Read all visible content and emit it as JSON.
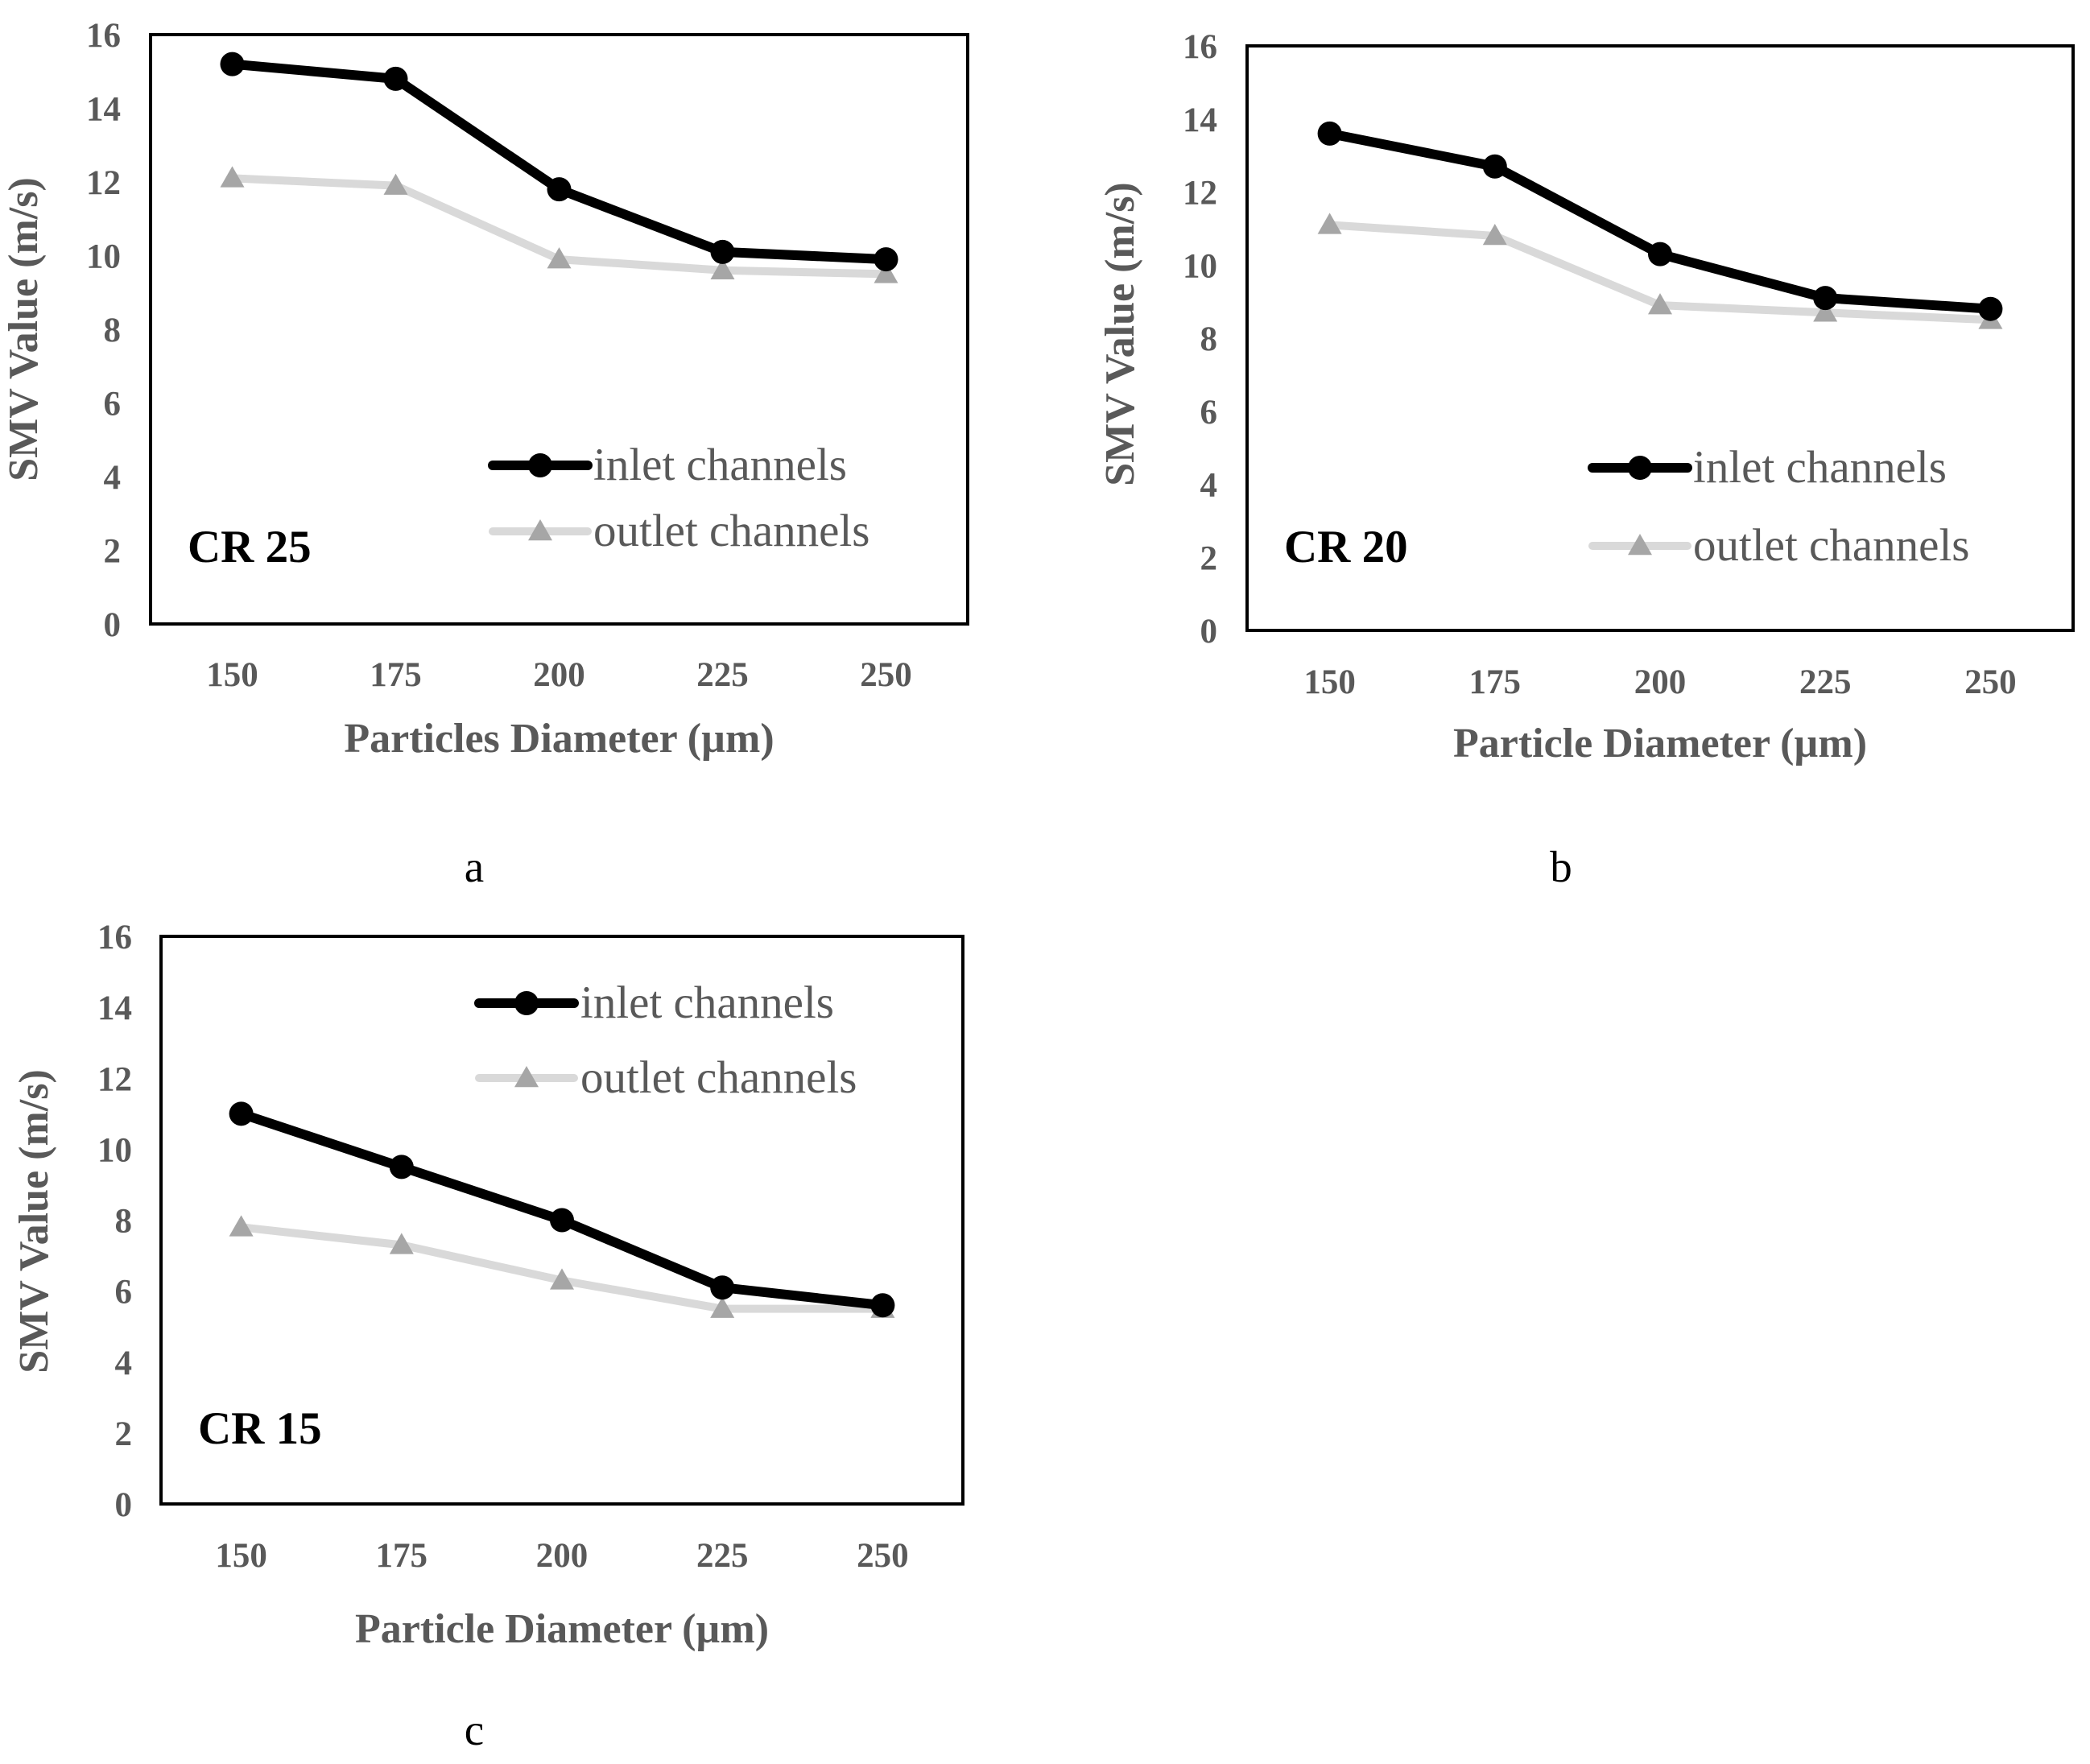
{
  "figure": {
    "captions": [
      "a",
      "b",
      "c"
    ]
  },
  "chart_data": [
    {
      "type": "line",
      "panel": "a",
      "annotation": "CR 25",
      "categories": [
        "150",
        "175",
        "200",
        "225",
        "250"
      ],
      "series": [
        {
          "name": "inlet channels",
          "color": "#000000",
          "marker": "circle",
          "values": [
            15.2,
            14.8,
            11.8,
            10.1,
            9.9
          ]
        },
        {
          "name": "outlet channels",
          "color": "#d9d9d9",
          "markerColor": "#a6a6a6",
          "marker": "triangle",
          "values": [
            12.1,
            11.9,
            9.9,
            9.6,
            9.5
          ]
        }
      ],
      "xlabel": "Particles Diameter (µm)",
      "ylabel": "SMV Value (m/s)",
      "ylim": [
        0,
        16
      ],
      "yticks": [
        "0",
        "2",
        "4",
        "6",
        "8",
        "10",
        "12",
        "14",
        "16"
      ],
      "legend": "top-right inside plot",
      "grid": false
    },
    {
      "type": "line",
      "panel": "b",
      "annotation": "CR 20",
      "categories": [
        "150",
        "175",
        "200",
        "225",
        "250"
      ],
      "series": [
        {
          "name": "inlet channels",
          "color": "#000000",
          "marker": "circle",
          "values": [
            13.6,
            12.7,
            10.3,
            9.1,
            8.8
          ]
        },
        {
          "name": "outlet channels",
          "color": "#d9d9d9",
          "markerColor": "#a6a6a6",
          "marker": "triangle",
          "values": [
            11.1,
            10.8,
            8.9,
            8.7,
            8.5
          ]
        }
      ],
      "xlabel": "Particle Diameter (µm)",
      "ylabel": "SMV Value (m/s)",
      "ylim": [
        0,
        16
      ],
      "yticks": [
        "0",
        "2",
        "4",
        "6",
        "8",
        "10",
        "12",
        "14",
        "16"
      ],
      "legend": "top-right inside plot",
      "grid": false
    },
    {
      "type": "line",
      "panel": "c",
      "annotation": "CR 15",
      "categories": [
        "150",
        "175",
        "200",
        "225",
        "250"
      ],
      "series": [
        {
          "name": "inlet channels",
          "color": "#000000",
          "marker": "circle",
          "values": [
            11.0,
            9.5,
            8.0,
            6.1,
            5.6
          ]
        },
        {
          "name": "outlet channels",
          "color": "#d9d9d9",
          "markerColor": "#a6a6a6",
          "marker": "triangle",
          "values": [
            7.8,
            7.3,
            6.3,
            5.5,
            5.5
          ]
        }
      ],
      "xlabel": "Particle Diameter (µm)",
      "ylabel": "SMV Value (m/s)",
      "ylim": [
        0,
        16
      ],
      "yticks": [
        "0",
        "2",
        "4",
        "6",
        "8",
        "10",
        "12",
        "14",
        "16"
      ],
      "legend": "top-right inside plot",
      "grid": false
    }
  ]
}
